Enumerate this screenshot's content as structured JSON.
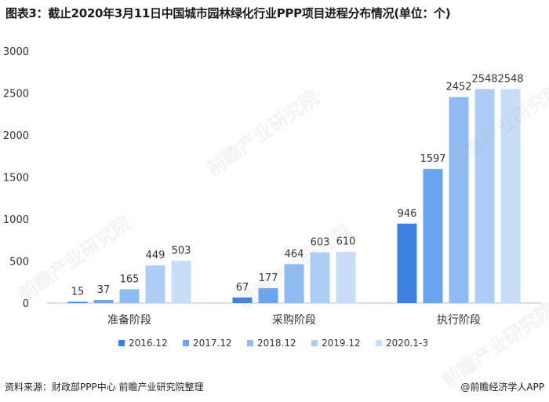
{
  "page": {
    "title": "图表3：截止2020年3月11日中国城市园林绿化行业PPP项目进程分布情况(单位：个)",
    "source": "资料来源：财政部PPP中心 前瞻产业研究院整理",
    "brand": "@前瞻经济学人APP",
    "watermark": "前瞻产业研究院"
  },
  "colors": {
    "series": [
      "#3b82e0",
      "#6aa3ee",
      "#8fbaf2",
      "#aecdf6",
      "#c7ddf8"
    ],
    "axis": "#bfbfbf",
    "text": "#333333"
  },
  "chart_data": {
    "type": "bar",
    "title": "图表3：截止2020年3月11日中国城市园林绿化行业PPP项目进程分布情况(单位：个)",
    "categories": [
      "准备阶段",
      "采购阶段",
      "执行阶段"
    ],
    "series": [
      {
        "name": "2016.12",
        "values": [
          15,
          67,
          946
        ]
      },
      {
        "name": "2017.12",
        "values": [
          37,
          177,
          1597
        ]
      },
      {
        "name": "2018.12",
        "values": [
          165,
          464,
          2452
        ]
      },
      {
        "name": "2019.12",
        "values": [
          449,
          603,
          2548
        ]
      },
      {
        "name": "2020.1-3",
        "values": [
          503,
          610,
          2548
        ]
      }
    ],
    "ylim": [
      0,
      3000
    ],
    "yticks": [
      0,
      500,
      1000,
      1500,
      2000,
      2500,
      3000
    ],
    "grid": false,
    "legend": "bottom"
  }
}
